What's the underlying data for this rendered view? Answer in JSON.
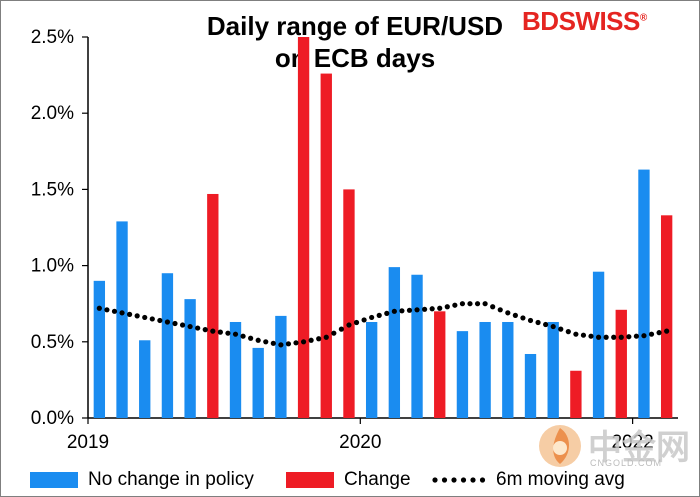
{
  "title": "Daily range of EUR/USD\non ECB days",
  "title_line1": "Daily range of EUR/USD",
  "title_line2": "on ECB days",
  "brand": {
    "part1": "BD",
    "part2": "SWISS",
    "mark": "®"
  },
  "watermark": {
    "text": "中金网",
    "url": "CNGOLD.COM"
  },
  "colors": {
    "no_change": "#1a8cf0",
    "change": "#ee1c25",
    "moving_avg": "#000000",
    "axis": "#000000"
  },
  "legend": {
    "no_change": "No change in policy",
    "change": "Change",
    "moving_avg": "6m moving avg"
  },
  "chart_data": {
    "type": "bar",
    "title": "Daily range of EUR/USD on ECB days",
    "xlabel": "",
    "ylabel": "",
    "ylim": [
      0,
      2.5
    ],
    "y_ticks": [
      "0.0%",
      "0.5%",
      "1.0%",
      "1.5%",
      "2.0%",
      "2.5%"
    ],
    "x_tick_labels": [
      {
        "label": "2019",
        "index": 0
      },
      {
        "label": "2020",
        "index": 12
      },
      {
        "label": "2022",
        "index": 24
      }
    ],
    "legend_position": "bottom",
    "grid": false,
    "bars": [
      {
        "value": 0.9,
        "series": "No change in policy"
      },
      {
        "value": 1.29,
        "series": "No change in policy"
      },
      {
        "value": 0.51,
        "series": "No change in policy"
      },
      {
        "value": 0.95,
        "series": "No change in policy"
      },
      {
        "value": 0.78,
        "series": "No change in policy"
      },
      {
        "value": 1.47,
        "series": "Change"
      },
      {
        "value": 0.63,
        "series": "No change in policy"
      },
      {
        "value": 0.46,
        "series": "No change in policy"
      },
      {
        "value": 0.67,
        "series": "No change in policy"
      },
      {
        "value": 2.5,
        "series": "Change"
      },
      {
        "value": 2.26,
        "series": "Change"
      },
      {
        "value": 1.5,
        "series": "Change"
      },
      {
        "value": 0.63,
        "series": "No change in policy"
      },
      {
        "value": 0.99,
        "series": "No change in policy"
      },
      {
        "value": 0.94,
        "series": "No change in policy"
      },
      {
        "value": 0.7,
        "series": "Change"
      },
      {
        "value": 0.57,
        "series": "No change in policy"
      },
      {
        "value": 0.63,
        "series": "No change in policy"
      },
      {
        "value": 0.63,
        "series": "No change in policy"
      },
      {
        "value": 0.42,
        "series": "No change in policy"
      },
      {
        "value": 0.63,
        "series": "No change in policy"
      },
      {
        "value": 0.31,
        "series": "Change"
      },
      {
        "value": 0.96,
        "series": "No change in policy"
      },
      {
        "value": 0.71,
        "series": "Change"
      },
      {
        "value": 1.63,
        "series": "No change in policy"
      },
      {
        "value": 1.33,
        "series": "Change"
      }
    ],
    "moving_avg": [
      0.72,
      0.69,
      0.66,
      0.63,
      0.6,
      0.57,
      0.55,
      0.51,
      0.48,
      0.5,
      0.53,
      0.61,
      0.66,
      0.7,
      0.71,
      0.72,
      0.75,
      0.75,
      0.69,
      0.64,
      0.6,
      0.55,
      0.53,
      0.53,
      0.54,
      0.57
    ]
  }
}
